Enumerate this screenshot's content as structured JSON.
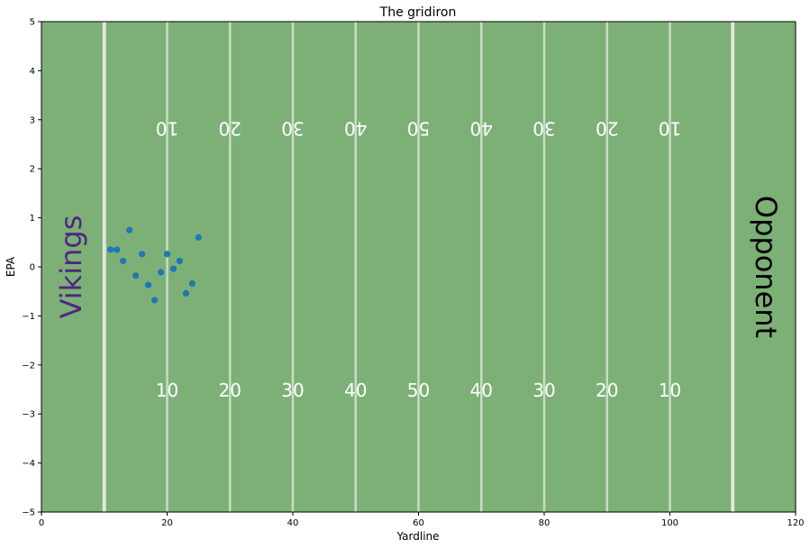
{
  "chart_data": {
    "type": "scatter",
    "title": "The gridiron",
    "xlabel": "Yardline",
    "ylabel": "EPA",
    "xlim": [
      0,
      120
    ],
    "ylim": [
      -5,
      5
    ],
    "x_ticks": [
      0,
      20,
      40,
      60,
      80,
      100,
      120
    ],
    "y_ticks": [
      -5,
      -4,
      -3,
      -2,
      -1,
      0,
      1,
      2,
      3,
      4,
      5
    ],
    "grid": false,
    "colors": {
      "field": "#7cb077",
      "yard_line": "#c9dcc4",
      "goal_line": "#e0e8d8",
      "points": "#1f77b4",
      "home_text": "#4f2683",
      "away_text": "#000000"
    },
    "endzones": {
      "home": "Vikings",
      "away": "Opponent"
    },
    "field_numbers": [
      "10",
      "20",
      "30",
      "40",
      "50",
      "40",
      "30",
      "20",
      "10"
    ],
    "field_number_x": [
      20,
      30,
      40,
      50,
      60,
      70,
      80,
      90,
      100
    ],
    "yard_lines": [
      10,
      20,
      30,
      40,
      50,
      60,
      70,
      80,
      90,
      100,
      110
    ],
    "series": [
      {
        "x": [
          11,
          12,
          13,
          14,
          15,
          16,
          17,
          18,
          19,
          20,
          21,
          22,
          23,
          24,
          25
        ],
        "y": [
          0.35,
          0.35,
          0.12,
          0.75,
          -0.18,
          0.26,
          -0.37,
          -0.68,
          -0.11,
          0.26,
          -0.04,
          0.12,
          -0.54,
          -0.34,
          0.6
        ]
      }
    ]
  }
}
